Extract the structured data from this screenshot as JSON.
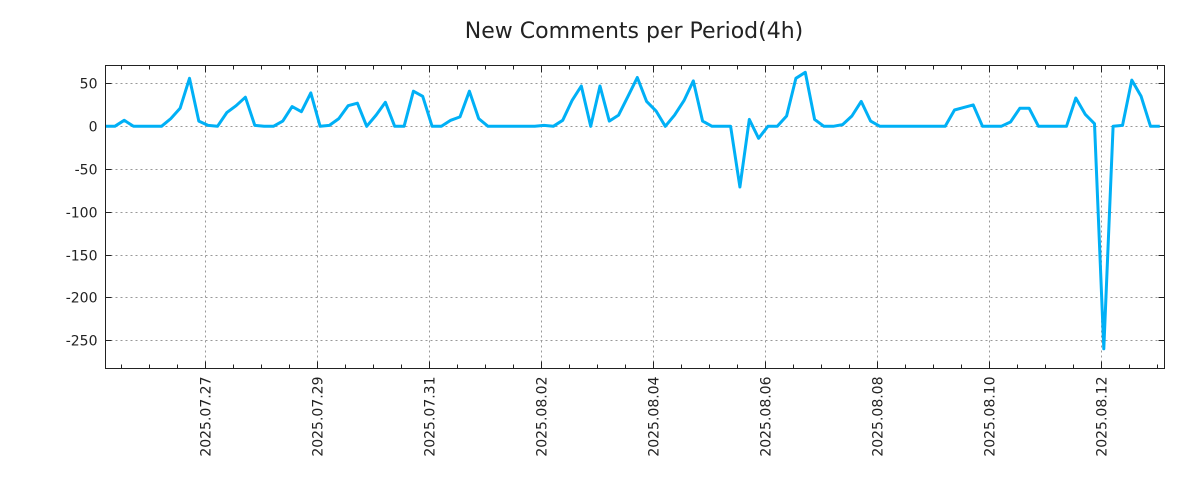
{
  "chart_data": {
    "type": "line",
    "title": "New Comments per Period(4h)",
    "xlabel": "",
    "ylabel": "",
    "interval_hours": 4,
    "series": [
      {
        "name": "New Comments",
        "color": "#00b0f6",
        "values": [
          0,
          0,
          7,
          0,
          0,
          0,
          0,
          9,
          21,
          56,
          6,
          1,
          0,
          16,
          24,
          34,
          1,
          0,
          0,
          6,
          23,
          17,
          39,
          0,
          1,
          9,
          24,
          27,
          0,
          13,
          28,
          0,
          0,
          41,
          35,
          0,
          0,
          7,
          11,
          41,
          9,
          0,
          0,
          0,
          0,
          0,
          0,
          1,
          0,
          7,
          30,
          47,
          0,
          47,
          6,
          13,
          35,
          57,
          29,
          18,
          0,
          13,
          30,
          53,
          6,
          0,
          0,
          0,
          -71,
          8,
          -14,
          0,
          0,
          12,
          56,
          63,
          8,
          0,
          0,
          2,
          12,
          29,
          6,
          0,
          0,
          0,
          0,
          0,
          0,
          0,
          0,
          19,
          22,
          25,
          0,
          0,
          0,
          5,
          21,
          21,
          0,
          0,
          0,
          0,
          33,
          14,
          3,
          -260,
          0,
          1,
          54,
          35,
          0,
          0
        ]
      }
    ],
    "x_tick_labels": [
      "2025.07.27",
      "2025.07.29",
      "2025.07.31",
      "2025.08.02",
      "2025.08.04",
      "2025.08.06",
      "2025.08.08",
      "2025.08.10",
      "2025.08.12"
    ],
    "y_ticks": [
      50,
      0,
      -50,
      -100,
      -150,
      -200,
      -250
    ],
    "y_tick_labels": [
      "50",
      "0",
      "-50",
      "-100",
      "-150",
      "-200",
      "-250"
    ],
    "ylim": [
      -283,
      71
    ],
    "grid": true,
    "legend": "none"
  }
}
